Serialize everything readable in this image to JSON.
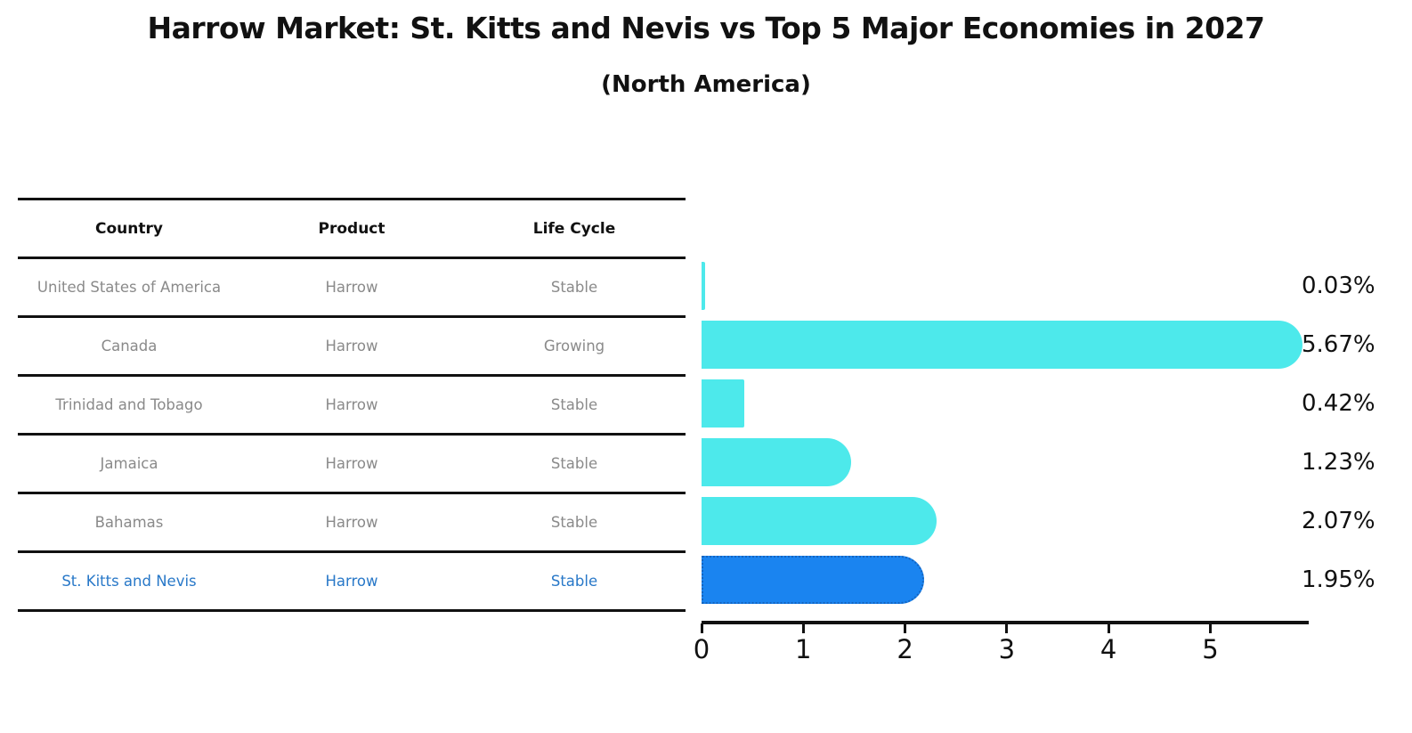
{
  "title": "Harrow Market: St. Kitts and Nevis vs Top 5 Major Economies in 2027",
  "subtitle": "(North America)",
  "table": {
    "headers": [
      "Country",
      "Product",
      "Life Cycle"
    ],
    "rows": [
      {
        "country": "United States of America",
        "product": "Harrow",
        "life_cycle": "Stable"
      },
      {
        "country": "Canada",
        "product": "Harrow",
        "life_cycle": "Growing"
      },
      {
        "country": "Trinidad and Tobago",
        "product": "Harrow",
        "life_cycle": "Stable"
      },
      {
        "country": "Jamaica",
        "product": "Harrow",
        "life_cycle": "Stable"
      },
      {
        "country": "Bahamas",
        "product": "Harrow",
        "life_cycle": "Stable"
      },
      {
        "country": "St. Kitts and Nevis",
        "product": "Harrow",
        "life_cycle": "Stable"
      }
    ]
  },
  "chart_data": {
    "type": "bar",
    "orientation": "horizontal",
    "title": "Harrow Market: St. Kitts and Nevis vs Top 5 Major Economies in 2027",
    "subtitle": "(North America)",
    "categories": [
      "United States of America",
      "Canada",
      "Trinidad and Tobago",
      "Jamaica",
      "Bahamas",
      "St. Kitts and Nevis"
    ],
    "values": [
      0.03,
      5.67,
      0.42,
      1.23,
      2.07,
      1.95
    ],
    "value_labels": [
      "0.03%",
      "5.67%",
      "0.42%",
      "1.23%",
      "2.07%",
      "1.95%"
    ],
    "xticks": [
      "0",
      "1",
      "2",
      "3",
      "4",
      "5"
    ],
    "xlim": [
      0,
      5.95
    ],
    "grid": false,
    "legend": false,
    "highlight_index": 5,
    "colors": {
      "bar": "#4de9eb",
      "highlight_bar": "#1a84f0",
      "highlight_border": "#1565c0",
      "highlight_text": "#2878c8",
      "axis": "#111111",
      "cell_text": "#8a8a8a"
    }
  }
}
